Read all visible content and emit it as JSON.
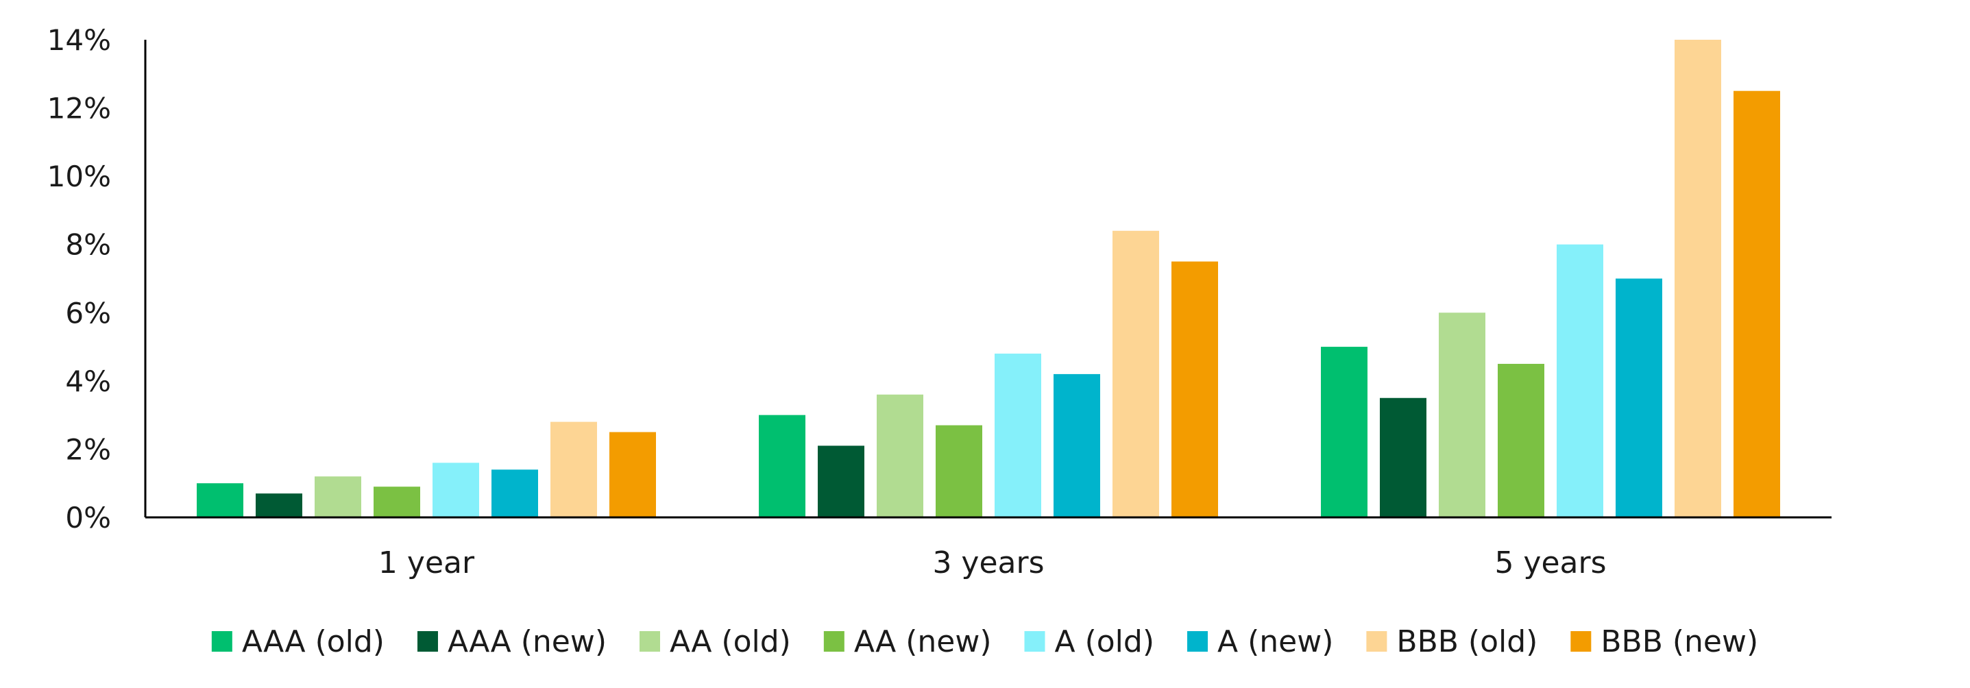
{
  "chart_data": {
    "type": "bar",
    "title": "",
    "xlabel": "",
    "ylabel": "",
    "categories": [
      "1 year",
      "3 years",
      "5 years"
    ],
    "ylim": [
      0,
      14
    ],
    "yticks": [
      0,
      2,
      4,
      6,
      8,
      10,
      12,
      14
    ],
    "ytick_labels": [
      "0%",
      "2%",
      "4%",
      "6%",
      "8%",
      "10%",
      "12%",
      "14%"
    ],
    "grid": false,
    "legend_position": "bottom",
    "series": [
      {
        "name": "AAA (old)",
        "color": "#00bf6f",
        "values": [
          1.0,
          3.0,
          5.0
        ]
      },
      {
        "name": "AAA (new)",
        "color": "#005a34",
        "values": [
          0.7,
          2.1,
          3.5
        ]
      },
      {
        "name": "AA (old)",
        "color": "#b1dc91",
        "values": [
          1.2,
          3.6,
          6.0
        ]
      },
      {
        "name": "AA (new)",
        "color": "#7bc143",
        "values": [
          0.9,
          2.7,
          4.5
        ]
      },
      {
        "name": "A (old)",
        "color": "#85f0fa",
        "values": [
          1.6,
          4.8,
          8.0
        ]
      },
      {
        "name": "A (new)",
        "color": "#00b4cc",
        "values": [
          1.4,
          4.2,
          7.0
        ]
      },
      {
        "name": "BBB (old)",
        "color": "#fdd594",
        "values": [
          2.8,
          8.4,
          14.0
        ]
      },
      {
        "name": "BBB (new)",
        "color": "#f39c00",
        "values": [
          2.5,
          7.5,
          12.5
        ]
      }
    ]
  }
}
